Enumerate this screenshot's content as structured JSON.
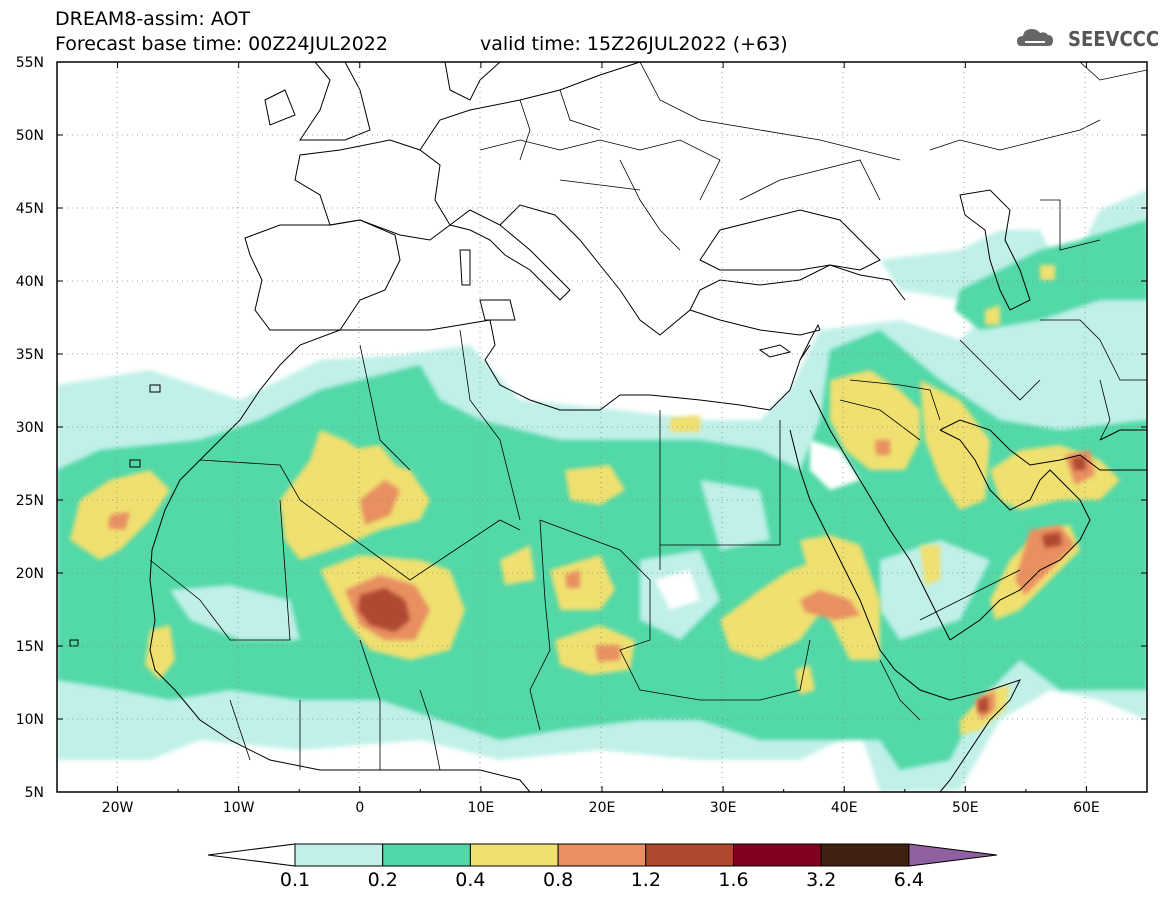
{
  "title": {
    "line1": "DREAM8-assim: AOT",
    "line2": "Forecast base time: 00Z24JUL2022",
    "valid": "valid time: 15Z26JUL2022 (+63)"
  },
  "logo": {
    "text": "SEEVCCC",
    "icon": "cloud-icon"
  },
  "map": {
    "lon_range": [
      -25,
      65
    ],
    "lat_range": [
      5,
      55
    ],
    "lat_ticks": [
      "55N",
      "50N",
      "45N",
      "40N",
      "35N",
      "30N",
      "25N",
      "20N",
      "15N",
      "10N",
      "5N"
    ],
    "lon_ticks": [
      "20W",
      "10W",
      "0",
      "10E",
      "20E",
      "30E",
      "40E",
      "50E",
      "60E"
    ],
    "grid": "dotted",
    "field": "AOT"
  },
  "colorbar": {
    "labels": [
      "0.1",
      "0.2",
      "0.4",
      "0.8",
      "1.2",
      "1.6",
      "3.2",
      "6.4"
    ],
    "colors": [
      "#c0f0e8",
      "#52d8a8",
      "#f0e070",
      "#e89060",
      "#b04830",
      "#800020",
      "#402010"
    ],
    "under_color": "#ffffff",
    "over_color": "#9060a0"
  }
}
